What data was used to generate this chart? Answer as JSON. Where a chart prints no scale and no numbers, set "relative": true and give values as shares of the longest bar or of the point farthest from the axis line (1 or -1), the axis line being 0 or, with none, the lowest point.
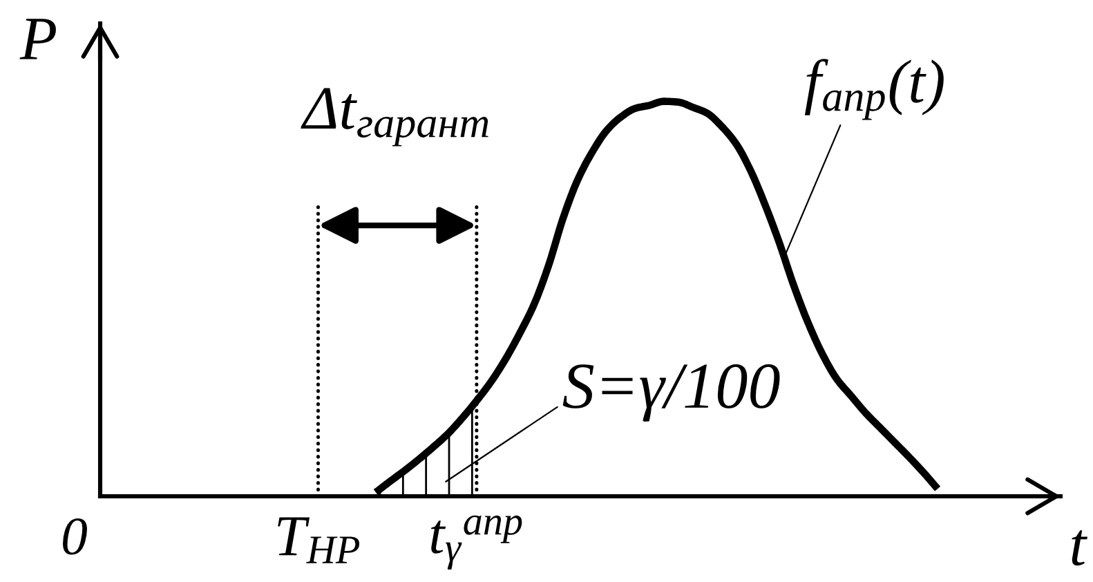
{
  "chart_data": {
    "type": "line",
    "relative": true,
    "xlabel": "t",
    "ylabel": "P",
    "tick_labels": "x",
    "categories": [
      "T$_{НР}$",
      null,
      null,
      null,
      null,
      null,
      null,
      null,
      null,
      null,
      null,
      "t$_{γ}$$^{апр}$",
      null,
      null,
      null,
      null,
      null,
      null,
      null,
      null,
      null,
      null,
      null,
      null,
      null,
      null,
      null,
      null,
      null,
      null,
      null,
      null,
      null,
      null,
      null,
      null,
      null,
      null,
      null,
      null,
      null,
      null,
      null,
      null
    ],
    "series": [
      {
        "color": "#000000",
        "values": [
          null,
          null,
          null,
          null,
          0.01,
          0.038,
          0.065,
          0.094,
          0.125,
          0.158,
          0.198,
          0.242,
          0.29,
          0.347,
          0.413,
          0.487,
          0.585,
          0.704,
          0.8,
          0.87,
          0.925,
          0.96,
          0.982,
          0.99,
          1,
          0.998,
          0.985,
          0.97,
          0.937,
          0.893,
          0.826,
          0.74,
          0.643,
          0.535,
          0.44,
          0.36,
          0.297,
          0.254,
          0.211,
          0.174,
          0.137,
          0.1,
          0.061,
          0.019
        ]
      },
      {
        "type": "area",
        "color": "#000000",
        "values": [
          null,
          null,
          null,
          null,
          0.01,
          0.038,
          0.065,
          0.094,
          0.125,
          0.158,
          0.198,
          0.242,
          null,
          null,
          null,
          null,
          null,
          null,
          null,
          null,
          null,
          null,
          null,
          null,
          null,
          null,
          null,
          null,
          null,
          null,
          null,
          null,
          null,
          null,
          null,
          null,
          null,
          null,
          null,
          null,
          null,
          null,
          null,
          null
        ]
      }
    ],
    "ref_lines": [
      {
        "axis": "x",
        "value": "T$_{НР}$",
        "line_style": "dotted"
      },
      {
        "axis": "x",
        "value": "t$_{γ}$$^{апр}$",
        "line_style": "dotted"
      }
    ],
    "annotations": [
      "Δt$_{гарант}$",
      "f$_{апр}$(t)",
      "S=γ/100",
      "0"
    ]
  }
}
